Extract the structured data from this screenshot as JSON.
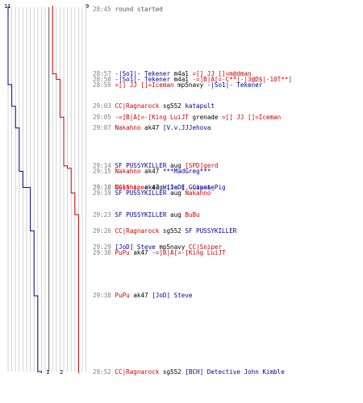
{
  "colors": {
    "team_red": "#cc0000",
    "team_blue": "#000099",
    "time": "#808080",
    "weapon": "#000000",
    "grid_light": "#c8c8c8",
    "grid_dark": "#777777"
  },
  "scores": {
    "blue_start": "11",
    "red_start": "9",
    "blue_end": "1",
    "red_end": "2"
  },
  "events": [
    {
      "time": "28:45",
      "text": "round started",
      "kind": "plain",
      "count": 1
    },
    {
      "time": "28:57",
      "killer": "-|So1|- Tekener",
      "killer_team": "blue",
      "weapon": "m4a1",
      "victim": "=[] JJ []=m@dman",
      "victim_team": "red",
      "count": 1
    },
    {
      "time": "28:58",
      "killer": "-|So1|- Tekener",
      "killer_team": "blue",
      "weapon": "m4a1",
      "victim": "-=]B|A[=-C**|-|3@D$|-10T**]",
      "victim_team": "red",
      "count": 1
    },
    {
      "time": "28:59",
      "killer": "=[] JJ []=Iceman",
      "killer_team": "red",
      "weapon": "mp5navy",
      "victim": "-|So1|- Tekener",
      "victim_team": "blue",
      "count": 1
    },
    {
      "time": "29:03",
      "killer": "CC|Ragnarock",
      "killer_team": "red",
      "weapon": "sg552",
      "victim": "katapult",
      "victim_team": "blue",
      "count": 1
    },
    {
      "time": "29:05",
      "killer": "-=]B|A[=-[King LuiJT",
      "killer_team": "red",
      "weapon": "grenade",
      "victim": "=[] JJ []=Iceman",
      "victim_team": "red",
      "count": 1
    },
    {
      "time": "29:07",
      "killer": "Nakahno",
      "killer_team": "red",
      "weapon": "ak47",
      "victim": "[V.v.JJJehova",
      "victim_team": "blue",
      "count": 1
    },
    {
      "time": "29:14",
      "killer": "SF PUSSYKILLER",
      "killer_team": "blue",
      "weapon": "aug",
      "victim": "[SPD]gerd",
      "victim_team": "red",
      "count": 2
    },
    {
      "time": "29:15",
      "killer": "Nakahno",
      "killer_team": "red",
      "weapon": "ak47",
      "victim": "***MadGreg***",
      "victim_team": "blue",
      "count": 1
    },
    {
      "time": "29:18",
      "killer": "CC|Sniper",
      "killer_team": "red",
      "weapon": "aug",
      "victim": "[JoD] Guinea_Pig",
      "victim_team": "blue",
      "count": 1
    },
    {
      "time": "29:18",
      "killer": "Nakahno",
      "killer_team": "red",
      "weapon": "ak47",
      "victim": "Wile E. Coyote",
      "victim_team": "blue",
      "count": 1
    },
    {
      "time": "29:19",
      "killer": "SF PUSSYKILLER",
      "killer_team": "blue",
      "weapon": "aug",
      "victim": "Nakahno",
      "victim_team": "red",
      "count": 1
    },
    {
      "time": "29:23",
      "killer": "SF PUSSYKILLER",
      "killer_team": "blue",
      "weapon": "aug",
      "victim": "BuBu",
      "victim_team": "red",
      "count": 1
    },
    {
      "time": "29:26",
      "killer": "CC|Ragnarock",
      "killer_team": "red",
      "weapon": "sg552",
      "victim": "SF PUSSYKILLER",
      "victim_team": "blue",
      "count": 1
    },
    {
      "time": "29:29",
      "killer": "[JoD] Steve",
      "killer_team": "blue",
      "weapon": "mp5navy",
      "victim": "CC|Sniper",
      "victim_team": "red",
      "count": 1
    },
    {
      "time": "29:30",
      "killer": "PuPu",
      "killer_team": "red",
      "weapon": "ak47",
      "victim": "-=]B|A[=-[King LuiJT",
      "victim_team": "red",
      "count": 1
    },
    {
      "time": "29:38",
      "killer": "PuPu",
      "killer_team": "red",
      "weapon": "ak47",
      "victim": "[JoD] Steve",
      "victim_team": "blue",
      "count": 1
    },
    {
      "time": "29:52",
      "killer": "CC|Ragnarock",
      "killer_team": "red",
      "weapon": "sg552",
      "victim": "[BCH] Detective John Kimble",
      "victim_team": "blue",
      "count": 1
    }
  ]
}
